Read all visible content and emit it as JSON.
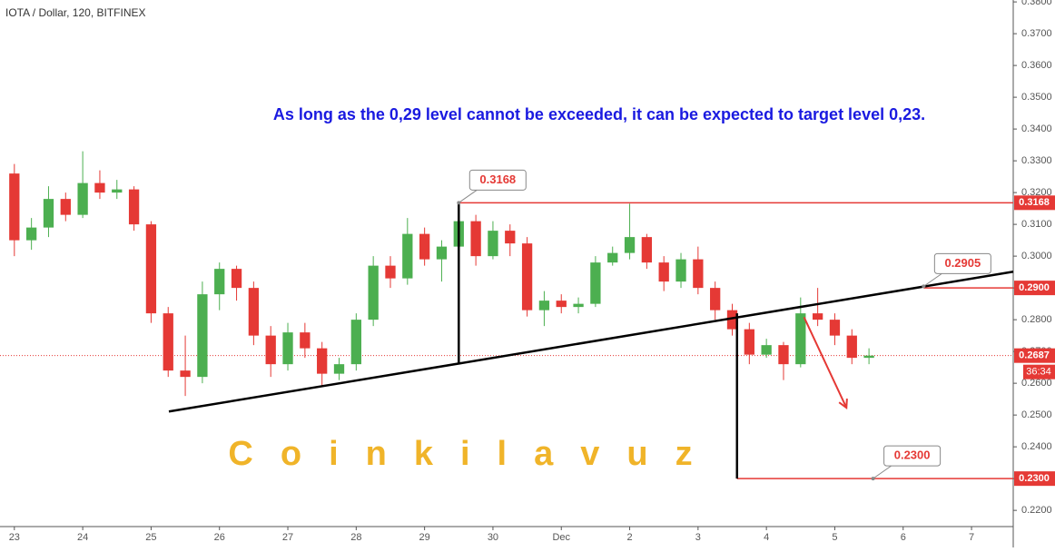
{
  "chart_data": {
    "type": "candlestick",
    "title": "IOTA / Dollar, 120, BITFINEX",
    "annotation": "As long as the 0,29 level cannot be exceeded, it can be expected to target level 0,23.",
    "watermark": "Coinkilavuz",
    "countdown": "36:34",
    "up_color": "#4caf50",
    "down_color": "#e53935",
    "x": [
      0,
      0.25,
      0.5,
      0.75,
      1,
      1.25,
      1.5,
      1.75,
      2,
      2.25,
      2.5,
      2.75,
      3,
      3.25,
      3.5,
      3.75,
      4,
      4.25,
      4.5,
      4.75,
      5,
      5.25,
      5.5,
      5.75,
      6,
      6.25,
      6.5,
      6.75,
      7,
      7.25,
      7.5,
      7.75,
      8,
      8.25,
      8.5,
      8.75,
      9,
      9.25,
      9.5,
      9.75,
      10,
      10.25,
      10.5,
      10.75,
      11,
      11.25,
      11.5,
      11.75,
      12,
      12.25,
      12.5
    ],
    "open": [
      0.326,
      0.305,
      0.309,
      0.318,
      0.313,
      0.323,
      0.32,
      0.321,
      0.31,
      0.282,
      0.264,
      0.262,
      0.288,
      0.296,
      0.29,
      0.275,
      0.266,
      0.276,
      0.271,
      0.263,
      0.266,
      0.28,
      0.297,
      0.293,
      0.307,
      0.299,
      0.303,
      0.311,
      0.3,
      0.308,
      0.304,
      0.283,
      0.286,
      0.284,
      0.285,
      0.298,
      0.301,
      0.306,
      0.298,
      0.292,
      0.299,
      0.29,
      0.283,
      0.277,
      0.269,
      0.272,
      0.266,
      0.282,
      0.28,
      0.275,
      0.268
    ],
    "high": [
      0.329,
      0.312,
      0.322,
      0.32,
      0.333,
      0.327,
      0.324,
      0.322,
      0.311,
      0.284,
      0.275,
      0.292,
      0.298,
      0.297,
      0.292,
      0.278,
      0.279,
      0.279,
      0.273,
      0.268,
      0.282,
      0.3,
      0.3,
      0.312,
      0.309,
      0.305,
      0.3168,
      0.313,
      0.311,
      0.31,
      0.306,
      0.289,
      0.288,
      0.287,
      0.3,
      0.303,
      0.3165,
      0.307,
      0.3,
      0.301,
      0.303,
      0.292,
      0.285,
      0.279,
      0.274,
      0.273,
      0.287,
      0.29,
      0.282,
      0.277,
      0.271
    ],
    "low": [
      0.3,
      0.302,
      0.306,
      0.311,
      0.312,
      0.318,
      0.318,
      0.308,
      0.279,
      0.262,
      0.256,
      0.26,
      0.283,
      0.286,
      0.272,
      0.262,
      0.264,
      0.268,
      0.259,
      0.261,
      0.264,
      0.278,
      0.29,
      0.291,
      0.297,
      0.292,
      0.3,
      0.297,
      0.299,
      0.3,
      0.281,
      0.278,
      0.282,
      0.282,
      0.284,
      0.297,
      0.299,
      0.296,
      0.289,
      0.29,
      0.288,
      0.28,
      0.275,
      0.266,
      0.268,
      0.261,
      0.265,
      0.278,
      0.272,
      0.266,
      0.266
    ],
    "close": [
      0.305,
      0.309,
      0.318,
      0.313,
      0.323,
      0.32,
      0.321,
      0.31,
      0.282,
      0.264,
      0.262,
      0.288,
      0.296,
      0.29,
      0.275,
      0.266,
      0.276,
      0.271,
      0.263,
      0.266,
      0.28,
      0.297,
      0.293,
      0.307,
      0.299,
      0.303,
      0.311,
      0.3,
      0.308,
      0.304,
      0.283,
      0.286,
      0.284,
      0.285,
      0.298,
      0.301,
      0.306,
      0.298,
      0.292,
      0.299,
      0.29,
      0.283,
      0.277,
      0.269,
      0.272,
      0.266,
      0.282,
      0.28,
      0.275,
      0.268,
      0.2687
    ],
    "xlim": [
      -0.21,
      14.61
    ],
    "xticks": [
      {
        "value": 0,
        "label": "23"
      },
      {
        "value": 1,
        "label": "24"
      },
      {
        "value": 2,
        "label": "25"
      },
      {
        "value": 3,
        "label": "26"
      },
      {
        "value": 4,
        "label": "27"
      },
      {
        "value": 5,
        "label": "28"
      },
      {
        "value": 6,
        "label": "29"
      },
      {
        "value": 7,
        "label": "30"
      },
      {
        "value": 8,
        "label": "Dec"
      },
      {
        "value": 9,
        "label": "2"
      },
      {
        "value": 10,
        "label": "3"
      },
      {
        "value": 11,
        "label": "4"
      },
      {
        "value": 12,
        "label": "5"
      },
      {
        "value": 13,
        "label": "6"
      },
      {
        "value": 14,
        "label": "7"
      }
    ],
    "ylim": [
      0.2149,
      0.3806
    ],
    "yticks": [
      {
        "value": 0.22,
        "label": "0.2200"
      },
      {
        "value": 0.23,
        "label": "0.2300"
      },
      {
        "value": 0.24,
        "label": "0.2400"
      },
      {
        "value": 0.25,
        "label": "0.2500"
      },
      {
        "value": 0.26,
        "label": "0.2600"
      },
      {
        "value": 0.27,
        "label": "0.2700"
      },
      {
        "value": 0.28,
        "label": "0.2800"
      },
      {
        "value": 0.29,
        "label": "0.2900"
      },
      {
        "value": 0.3,
        "label": "0.3000"
      },
      {
        "value": 0.31,
        "label": "0.3100"
      },
      {
        "value": 0.32,
        "label": "0.3200"
      },
      {
        "value": 0.33,
        "label": "0.3300"
      },
      {
        "value": 0.34,
        "label": "0.3400"
      },
      {
        "value": 0.35,
        "label": "0.3500"
      },
      {
        "value": 0.36,
        "label": "0.3600"
      },
      {
        "value": 0.37,
        "label": "0.3700"
      },
      {
        "value": 0.38,
        "label": "0.3800"
      }
    ],
    "levels": [
      {
        "value": 0.3168,
        "label": "0.3168",
        "x_start": 6.5
      },
      {
        "value": 0.29,
        "label": "0.2900",
        "x_start": 13.3
      },
      {
        "value": 0.23,
        "label": "0.2300",
        "x_start": 10.57
      }
    ],
    "current_price": {
      "value": 0.2687,
      "label": "0.2687"
    },
    "callouts": [
      {
        "label": "0.3168",
        "x": 6.5,
        "value": 0.3168
      },
      {
        "label": "0.2905",
        "x": 13.3,
        "value": 0.2905
      },
      {
        "label": "0.2300",
        "x": 12.56,
        "value": 0.23
      }
    ],
    "drawings": [
      {
        "x": [
          2.26,
          14.61
        ],
        "values": [
          0.2511,
          0.2951
        ]
      },
      {
        "x": [
          6.5,
          6.5
        ],
        "values": [
          0.3168,
          0.2662
        ]
      },
      {
        "x": [
          10.57,
          10.57
        ],
        "values": [
          0.282,
          0.23
        ]
      }
    ],
    "arrow": {
      "x": [
        11.55,
        12.17
      ],
      "values": [
        0.2808,
        0.2523
      ]
    }
  }
}
